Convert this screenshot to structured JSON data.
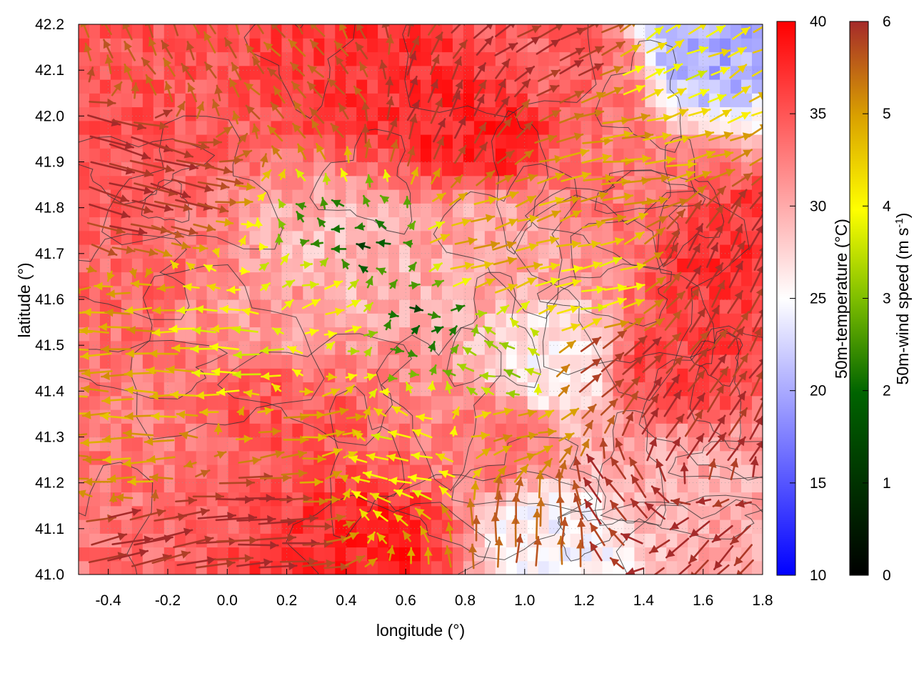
{
  "chart_data": {
    "type": "heatmap",
    "xlabel": "longitude (°)",
    "ylabel": "latitude (°)",
    "xlim": [
      -0.5,
      1.8
    ],
    "ylim": [
      41.0,
      42.2
    ],
    "xticks": [
      -0.4,
      -0.2,
      0.0,
      0.2,
      0.4,
      0.6,
      0.8,
      1.0,
      1.2,
      1.4,
      1.6,
      1.8
    ],
    "xtick_labels": [
      "-0.4",
      "-0.2",
      "0.0",
      "0.2",
      "0.4",
      "0.6",
      "0.8",
      "1.0",
      "1.2",
      "1.4",
      "1.6",
      "1.8"
    ],
    "yticks": [
      41.0,
      41.1,
      41.2,
      41.3,
      41.4,
      41.5,
      41.6,
      41.7,
      41.8,
      41.9,
      42.0,
      42.1,
      42.2
    ],
    "ytick_labels": [
      "41.0",
      "41.1",
      "41.2",
      "41.3",
      "41.4",
      "41.5",
      "41.6",
      "41.7",
      "41.8",
      "41.9",
      "42.0",
      "42.1",
      "42.2"
    ],
    "grid": true,
    "contours": true,
    "temperature_colorbar": {
      "label": "50m-temperature (°C)",
      "range": [
        10,
        40
      ],
      "ticks": [
        10,
        15,
        20,
        25,
        30,
        35,
        40
      ],
      "tick_labels": [
        "10",
        "15",
        "20",
        "25",
        "30",
        "35",
        "40"
      ],
      "colors": [
        "#0000ff",
        "#ffffff",
        "#ff0000"
      ]
    },
    "wind_colorbar": {
      "label_main": "50m-wind speed (m s",
      "label_sup": "-1",
      "label_end": ")",
      "range": [
        0,
        6
      ],
      "ticks": [
        0,
        1,
        2,
        3,
        4,
        5,
        6
      ],
      "tick_labels": [
        "0",
        "1",
        "2",
        "3",
        "4",
        "5",
        "6"
      ],
      "colors": [
        "#000000",
        "#006400",
        "#7fbf00",
        "#ffff00",
        "#d9a000",
        "#c06020",
        "#a52a2a"
      ]
    },
    "temperature_regions": [
      {
        "lon": -0.3,
        "lat": 42.05,
        "t": 35
      },
      {
        "lon": 0.5,
        "lat": 42.1,
        "t": 37
      },
      {
        "lon": 0.85,
        "lat": 41.95,
        "t": 38
      },
      {
        "lon": 1.2,
        "lat": 42.1,
        "t": 34
      },
      {
        "lon": 1.6,
        "lat": 42.15,
        "t": 20
      },
      {
        "lon": 1.7,
        "lat": 41.7,
        "t": 37
      },
      {
        "lon": 1.5,
        "lat": 41.45,
        "t": 36
      },
      {
        "lon": 0.4,
        "lat": 41.7,
        "t": 29
      },
      {
        "lon": 0.2,
        "lat": 41.55,
        "t": 31
      },
      {
        "lon": -0.4,
        "lat": 41.7,
        "t": 34
      },
      {
        "lon": -0.3,
        "lat": 41.3,
        "t": 33
      },
      {
        "lon": 0.2,
        "lat": 41.35,
        "t": 35
      },
      {
        "lon": 0.5,
        "lat": 41.05,
        "t": 38
      },
      {
        "lon": 0.9,
        "lat": 41.3,
        "t": 33
      },
      {
        "lon": 1.1,
        "lat": 41.08,
        "t": 25
      },
      {
        "lon": 1.1,
        "lat": 41.45,
        "t": 26
      },
      {
        "lon": 1.55,
        "lat": 41.2,
        "t": 30
      },
      {
        "lon": 0.9,
        "lat": 41.75,
        "t": 30
      },
      {
        "lon": 1.35,
        "lat": 41.85,
        "t": 33
      }
    ],
    "wind_regions": [
      {
        "lon": -0.35,
        "lat": 41.9,
        "u": 5.5,
        "v": -1.5,
        "spd": 6
      },
      {
        "lon": -0.2,
        "lat": 42.1,
        "u": -1.0,
        "v": 2.0,
        "spd": 5
      },
      {
        "lon": 0.3,
        "lat": 42.05,
        "u": -1.5,
        "v": 1.5,
        "spd": 5
      },
      {
        "lon": 0.7,
        "lat": 42.0,
        "u": 1.0,
        "v": 2.5,
        "spd": 6
      },
      {
        "lon": 1.1,
        "lat": 42.15,
        "u": 2.5,
        "v": 1.5,
        "spd": 6
      },
      {
        "lon": 1.45,
        "lat": 42.1,
        "u": 2.0,
        "v": 1.0,
        "spd": 3
      },
      {
        "lon": 1.3,
        "lat": 41.9,
        "u": 3.5,
        "v": 0.5,
        "spd": 4
      },
      {
        "lon": 1.65,
        "lat": 41.65,
        "u": 1.5,
        "v": 3.0,
        "spd": 6
      },
      {
        "lon": 0.45,
        "lat": 41.72,
        "u": -0.8,
        "v": 0.2,
        "spd": 1
      },
      {
        "lon": 0.65,
        "lat": 41.55,
        "u": 0.6,
        "v": 0.1,
        "spd": 1
      },
      {
        "lon": 0.3,
        "lat": 41.6,
        "u": 1.5,
        "v": 0.5,
        "spd": 3
      },
      {
        "lon": 0.85,
        "lat": 41.7,
        "u": 2.5,
        "v": 0.8,
        "spd": 4
      },
      {
        "lon": 0.05,
        "lat": 41.48,
        "u": -3.0,
        "v": 0.0,
        "spd": 3
      },
      {
        "lon": -0.3,
        "lat": 41.45,
        "u": -3.5,
        "v": 0.0,
        "spd": 4
      },
      {
        "lon": -0.3,
        "lat": 41.25,
        "u": -3.5,
        "v": 0.0,
        "spd": 4
      },
      {
        "lon": 0.25,
        "lat": 41.3,
        "u": 2.5,
        "v": 0.3,
        "spd": 4
      },
      {
        "lon": 0.0,
        "lat": 41.12,
        "u": 5.0,
        "v": 0.2,
        "spd": 6
      },
      {
        "lon": -0.3,
        "lat": 41.05,
        "u": 5.0,
        "v": 1.0,
        "spd": 6
      },
      {
        "lon": 0.6,
        "lat": 41.25,
        "u": -2.5,
        "v": 0.5,
        "spd": 3
      },
      {
        "lon": 0.95,
        "lat": 41.3,
        "u": 2.0,
        "v": 0.5,
        "spd": 4
      },
      {
        "lon": 0.95,
        "lat": 41.45,
        "u": -1.5,
        "v": 0.3,
        "spd": 2
      },
      {
        "lon": 1.05,
        "lat": 41.1,
        "u": 0.2,
        "v": 3.5,
        "spd": 5
      },
      {
        "lon": 1.35,
        "lat": 41.15,
        "u": -2.0,
        "v": 2.5,
        "spd": 6
      },
      {
        "lon": 1.6,
        "lat": 41.05,
        "u": -2.5,
        "v": -2.5,
        "spd": 6
      },
      {
        "lon": 1.55,
        "lat": 41.3,
        "u": 2.0,
        "v": 3.0,
        "spd": 6
      },
      {
        "lon": 1.25,
        "lat": 41.45,
        "u": 2.5,
        "v": 2.0,
        "spd": 6
      },
      {
        "lon": 1.2,
        "lat": 41.6,
        "u": 2.5,
        "v": 0.5,
        "spd": 3
      }
    ]
  }
}
